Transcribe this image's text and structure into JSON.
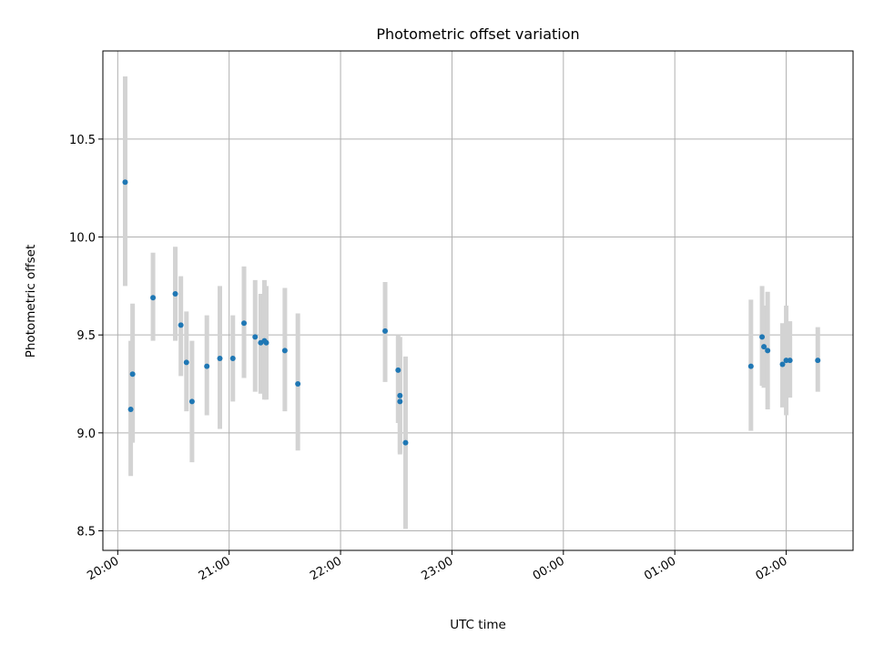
{
  "chart_data": {
    "type": "scatter",
    "title": "Photometric offset variation",
    "xlabel": "UTC time",
    "ylabel": "Photometric offset",
    "xlim": [
      "19:52",
      "02:36"
    ],
    "ylim": [
      8.4,
      10.95
    ],
    "x_ticks": [
      "20:00",
      "21:00",
      "22:00",
      "23:00",
      "00:00",
      "01:00",
      "02:00"
    ],
    "y_ticks": [
      "8.5",
      "9.0",
      "9.5",
      "10.0",
      "10.5"
    ],
    "grid": true,
    "colors": {
      "points": "#1f77b4",
      "error_bars": "#d3d3d3"
    },
    "series": [
      {
        "points": [
          {
            "x": "20:04",
            "y": 10.28,
            "err_low": 9.75,
            "err_high": 10.82
          },
          {
            "x": "20:07",
            "y": 9.12,
            "err_low": 8.78,
            "err_high": 9.47
          },
          {
            "x": "20:08",
            "y": 9.3,
            "err_low": 8.95,
            "err_high": 9.66
          },
          {
            "x": "20:19",
            "y": 9.69,
            "err_low": 9.47,
            "err_high": 9.92
          },
          {
            "x": "20:31",
            "y": 9.71,
            "err_low": 9.47,
            "err_high": 9.95
          },
          {
            "x": "20:34",
            "y": 9.55,
            "err_low": 9.29,
            "err_high": 9.8
          },
          {
            "x": "20:37",
            "y": 9.36,
            "err_low": 9.11,
            "err_high": 9.62
          },
          {
            "x": "20:40",
            "y": 9.16,
            "err_low": 8.85,
            "err_high": 9.47
          },
          {
            "x": "20:48",
            "y": 9.34,
            "err_low": 9.09,
            "err_high": 9.6
          },
          {
            "x": "20:55",
            "y": 9.38,
            "err_low": 9.02,
            "err_high": 9.75
          },
          {
            "x": "21:02",
            "y": 9.38,
            "err_low": 9.16,
            "err_high": 9.6
          },
          {
            "x": "21:08",
            "y": 9.56,
            "err_low": 9.28,
            "err_high": 9.85
          },
          {
            "x": "21:14",
            "y": 9.49,
            "err_low": 9.21,
            "err_high": 9.78
          },
          {
            "x": "21:17",
            "y": 9.46,
            "err_low": 9.2,
            "err_high": 9.71
          },
          {
            "x": "21:19",
            "y": 9.47,
            "err_low": 9.17,
            "err_high": 9.78
          },
          {
            "x": "21:20",
            "y": 9.46,
            "err_low": 9.17,
            "err_high": 9.75
          },
          {
            "x": "21:30",
            "y": 9.42,
            "err_low": 9.11,
            "err_high": 9.74
          },
          {
            "x": "21:37",
            "y": 9.25,
            "err_low": 8.91,
            "err_high": 9.61
          },
          {
            "x": "22:24",
            "y": 9.52,
            "err_low": 9.26,
            "err_high": 9.77
          },
          {
            "x": "22:31",
            "y": 9.32,
            "err_low": 9.05,
            "err_high": 9.5
          },
          {
            "x": "22:32",
            "y": 9.19,
            "err_low": 8.9,
            "err_high": 9.49
          },
          {
            "x": "22:32",
            "y": 9.16,
            "err_low": 8.89,
            "err_high": 9.42
          },
          {
            "x": "22:35",
            "y": 8.95,
            "err_low": 8.51,
            "err_high": 9.39
          },
          {
            "x": "01:41",
            "y": 9.34,
            "err_low": 9.01,
            "err_high": 9.68
          },
          {
            "x": "01:47",
            "y": 9.49,
            "err_low": 9.24,
            "err_high": 9.75
          },
          {
            "x": "01:48",
            "y": 9.44,
            "err_low": 9.23,
            "err_high": 9.65
          },
          {
            "x": "01:50",
            "y": 9.42,
            "err_low": 9.12,
            "err_high": 9.72
          },
          {
            "x": "01:58",
            "y": 9.35,
            "err_low": 9.13,
            "err_high": 9.56
          },
          {
            "x": "02:00",
            "y": 9.37,
            "err_low": 9.09,
            "err_high": 9.65
          },
          {
            "x": "02:02",
            "y": 9.37,
            "err_low": 9.18,
            "err_high": 9.57
          },
          {
            "x": "02:17",
            "y": 9.37,
            "err_low": 9.21,
            "err_high": 9.54
          }
        ]
      }
    ]
  }
}
